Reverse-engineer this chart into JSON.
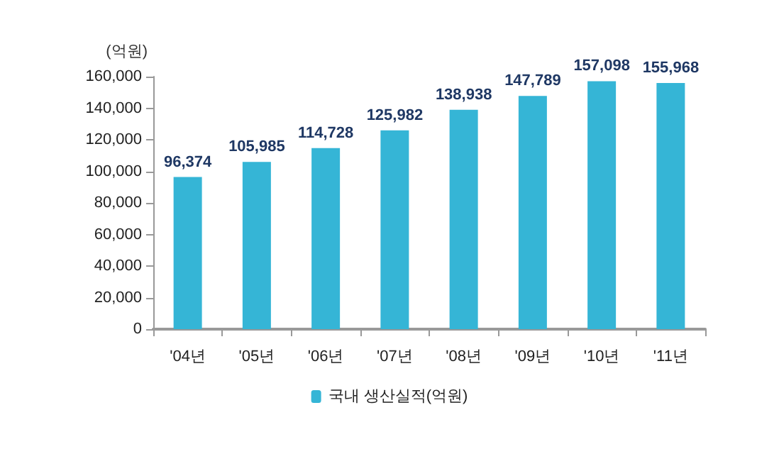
{
  "chart_data": {
    "type": "bar",
    "ylabel": "(억원)",
    "categories": [
      "'04년",
      "'05년",
      "'06년",
      "'07년",
      "'08년",
      "'09년",
      "'10년",
      "'11년"
    ],
    "series": [
      {
        "name": "국내 생산실적(억원)",
        "color": "#35b5d6",
        "values": [
          96374,
          105985,
          114728,
          125982,
          138938,
          147789,
          157098,
          155968
        ],
        "value_labels": [
          "96,374",
          "105,985",
          "114,728",
          "125,982",
          "138,938",
          "147,789",
          "157,098",
          "155,968"
        ]
      }
    ],
    "ylim": [
      0,
      160000
    ],
    "yticks": [
      {
        "value": 0,
        "label": "0"
      },
      {
        "value": 20000,
        "label": "20,000"
      },
      {
        "value": 40000,
        "label": "40,000"
      },
      {
        "value": 60000,
        "label": "60,000"
      },
      {
        "value": 80000,
        "label": "80,000"
      },
      {
        "value": 100000,
        "label": "100,000"
      },
      {
        "value": 120000,
        "label": "120,000"
      },
      {
        "value": 140000,
        "label": "140,000"
      },
      {
        "value": 160000,
        "label": "160,000"
      }
    ],
    "grid": false,
    "legend": "bottom"
  }
}
